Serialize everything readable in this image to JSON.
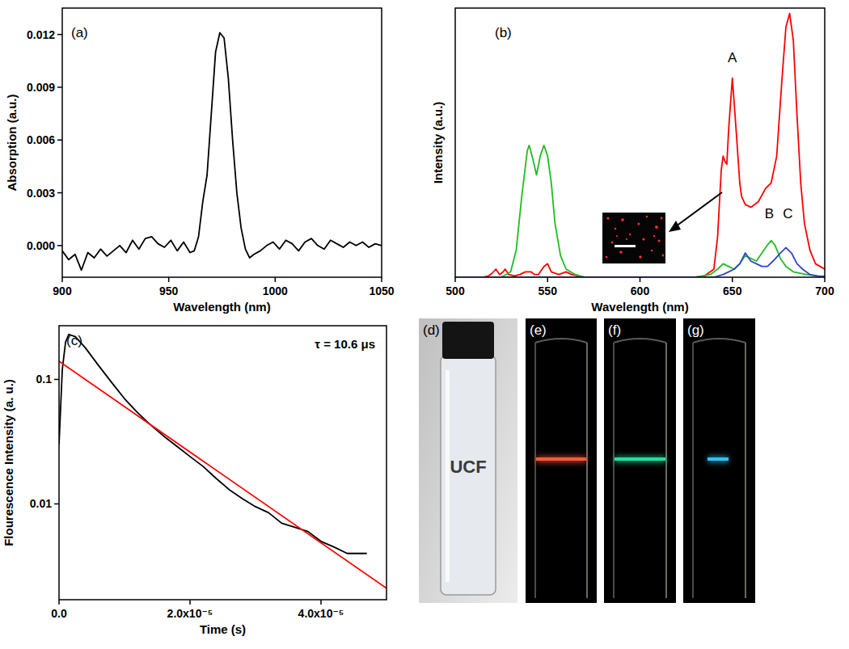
{
  "chart_data": [
    {
      "type": "line",
      "title": "(a)",
      "x_label": "Wavelength (nm)",
      "y_label": "Absorption (a.u.)",
      "color": "#000000",
      "x": [
        900,
        903,
        906,
        909,
        912,
        915,
        918,
        921,
        924,
        927,
        930,
        933,
        936,
        939,
        942,
        945,
        948,
        951,
        954,
        957,
        960,
        962,
        964,
        966,
        968,
        970,
        972,
        974,
        976,
        978,
        980,
        982,
        984,
        986,
        988,
        990,
        993,
        996,
        999,
        1002,
        1005,
        1008,
        1011,
        1014,
        1017,
        1020,
        1023,
        1026,
        1029,
        1032,
        1035,
        1038,
        1041,
        1044,
        1047,
        1050
      ],
      "values": [
        -0.0003,
        -0.0008,
        -0.0005,
        -0.0014,
        -0.0004,
        -0.0007,
        -0.0002,
        -0.0006,
        -0.0003,
        0.0,
        -0.0004,
        0.0003,
        -0.0002,
        0.0004,
        0.0005,
        0.0001,
        -0.0001,
        0.0003,
        -0.0003,
        0.0002,
        -0.0004,
        -0.0003,
        0.0005,
        0.0025,
        0.004,
        0.0075,
        0.011,
        0.0121,
        0.0118,
        0.0095,
        0.006,
        0.003,
        0.001,
        -0.0002,
        -0.0007,
        -0.0005,
        -0.0003,
        0.0,
        0.0002,
        -0.0002,
        0.0003,
        0.0001,
        -0.0003,
        0.0002,
        0.0004,
        0.0,
        -0.0002,
        0.0003,
        0.0001,
        -0.0001,
        0.0002,
        0.0,
        0.0002,
        -0.0001,
        0.0001,
        0.0
      ],
      "xlim": [
        900,
        1050
      ],
      "ylim": [
        -0.0018,
        0.0135
      ],
      "xticks": [
        900,
        950,
        1000,
        1050
      ],
      "yticks": [
        {
          "value": 0,
          "label": "0.000"
        },
        {
          "value": 0.003,
          "label": "0.003"
        },
        {
          "value": 0.006,
          "label": "0.006"
        },
        {
          "value": 0.009,
          "label": "0.009"
        },
        {
          "value": 0.012,
          "label": "0.012"
        }
      ]
    },
    {
      "type": "line",
      "title": "(b)",
      "x_label": "Wavelength (nm)",
      "y_label": "Intensity (a.u.)",
      "tick_labels": "x",
      "xlim": [
        500,
        700
      ],
      "ylim": [
        0,
        100
      ],
      "xticks": [
        500,
        550,
        600,
        650,
        700
      ],
      "series": [
        {
          "color": "#ff0000",
          "x": [
            500,
            510,
            515,
            518,
            520,
            522,
            524,
            526,
            527,
            529,
            532,
            535,
            538,
            541,
            543,
            545,
            548,
            550,
            552,
            556,
            560,
            563,
            570,
            600,
            630,
            635,
            640,
            642,
            644,
            645,
            646,
            647,
            648,
            650,
            652,
            654,
            655,
            657,
            660,
            664,
            668,
            671,
            674,
            677,
            679,
            681,
            683,
            685,
            687,
            689,
            692,
            695,
            700
          ],
          "values": [
            0,
            0,
            0,
            0.5,
            1.5,
            3,
            1,
            2,
            3,
            1,
            0.5,
            1,
            2,
            2,
            1,
            1,
            4,
            5,
            2,
            1,
            2,
            1,
            0,
            0,
            0,
            0.5,
            3,
            15,
            40,
            45,
            43,
            42,
            55,
            74,
            55,
            35,
            30,
            27,
            26,
            28,
            33,
            35,
            45,
            75,
            93,
            98,
            88,
            60,
            35,
            20,
            10,
            5,
            3
          ]
        },
        {
          "color": "#22bb22",
          "x": [
            500,
            525,
            530,
            533,
            536,
            539,
            540,
            542,
            544,
            546,
            548,
            550,
            552,
            554,
            557,
            560,
            565,
            570,
            600,
            630,
            638,
            642,
            645,
            648,
            651,
            654,
            657,
            660,
            663,
            666,
            669,
            671,
            673,
            676,
            679,
            683,
            690,
            700
          ],
          "values": [
            0,
            0,
            2,
            10,
            30,
            47,
            49,
            44,
            38,
            45,
            49,
            45,
            35,
            20,
            8,
            3,
            1,
            0,
            0,
            0,
            1,
            3,
            5,
            4,
            3,
            5,
            8,
            7,
            6,
            9,
            12,
            13.6,
            12,
            7,
            4,
            2,
            1,
            0
          ]
        },
        {
          "color": "#3344cc",
          "x": [
            500,
            600,
            640,
            645,
            648,
            651,
            654,
            657,
            660,
            663,
            666,
            669,
            672,
            676,
            679,
            682,
            685,
            688,
            692,
            696,
            700
          ],
          "values": [
            0,
            0,
            0,
            1,
            2,
            3,
            5,
            9,
            6,
            5,
            4,
            4,
            6,
            9,
            11,
            9,
            5,
            3,
            1,
            0.5,
            0.3
          ]
        }
      ],
      "annotations": [
        {
          "text": "A",
          "x": 650,
          "y": 80
        },
        {
          "text": "B",
          "x": 670,
          "y": 22
        },
        {
          "text": "C",
          "x": 680,
          "y": 22
        }
      ]
    },
    {
      "type": "line",
      "title": "(c)",
      "x_label": "Time (s)",
      "y_label": "Flourescence Intensity (a. u.)",
      "log": "y",
      "xlim": [
        0,
        5e-05
      ],
      "ylim": [
        0.0017,
        0.27
      ],
      "xticks": [
        {
          "value": 0,
          "label": "0.0"
        },
        {
          "value": 2e-05,
          "label": "2.0x10⁻⁵"
        },
        {
          "value": 4e-05,
          "label": "4.0x10⁻⁵"
        }
      ],
      "yticks": [
        0.01,
        0.1
      ],
      "series": [
        {
          "color": "#000000",
          "x": [
            0,
            5e-07,
            1e-06,
            1.5e-06,
            2.5e-06,
            4e-06,
            6e-06,
            8e-06,
            1e-05,
            1.2e-05,
            1.4e-05,
            1.6e-05,
            1.8e-05,
            2e-05,
            2.2e-05,
            2.4e-05,
            2.6e-05,
            2.8e-05,
            3e-05,
            3.2e-05,
            3.4e-05,
            3.6e-05,
            3.8e-05,
            4e-05,
            4.2e-05,
            4.4e-05,
            4.7e-05
          ],
          "values": [
            0.03,
            0.12,
            0.2,
            0.23,
            0.22,
            0.18,
            0.13,
            0.095,
            0.07,
            0.054,
            0.043,
            0.035,
            0.029,
            0.024,
            0.02,
            0.016,
            0.013,
            0.011,
            0.0095,
            0.0085,
            0.007,
            0.0065,
            0.006,
            0.005,
            0.0045,
            0.004,
            0.004
          ]
        },
        {
          "color": "#ff0000",
          "x": [
            0,
            5e-05
          ],
          "values": [
            0.14,
            0.0021
          ]
        }
      ],
      "annotations": [
        {
          "text": "τ = 10.6 μs"
        }
      ]
    }
  ],
  "photos": [
    {
      "title": "(d)",
      "text": "UCF"
    },
    {
      "title": "(e)",
      "color": "#ff5a3c"
    },
    {
      "title": "(f)",
      "color": "#22e0a0"
    },
    {
      "title": "(g)",
      "color": "#33c0f0"
    }
  ]
}
